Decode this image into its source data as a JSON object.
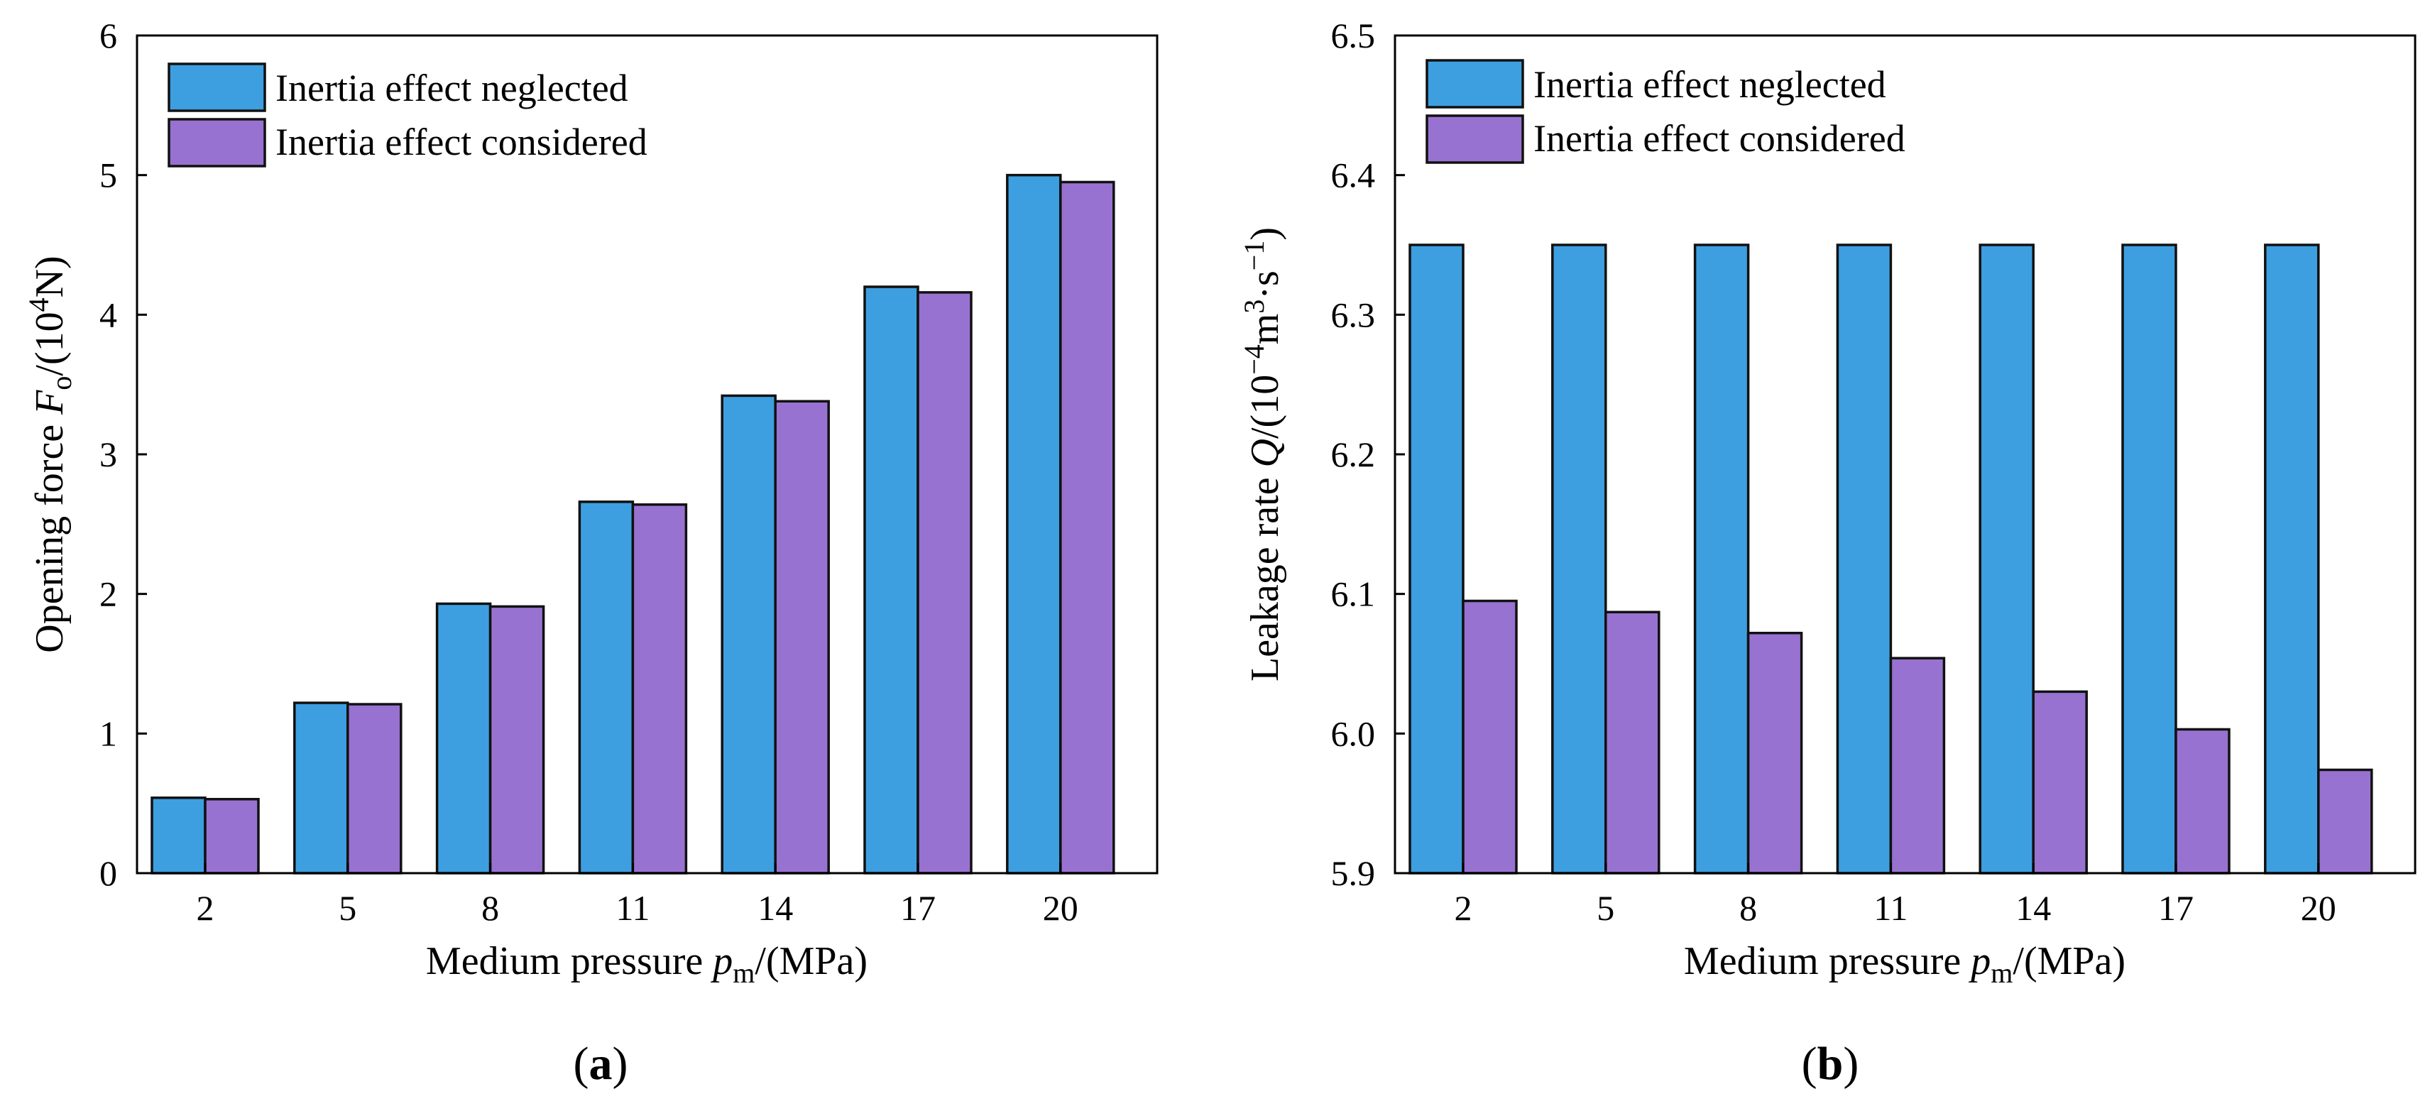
{
  "colors": {
    "neglected_fill": "#3d9fe0",
    "considered_fill": "#9872d0",
    "axis": "#000000"
  },
  "chart_data": [
    {
      "type": "bar",
      "panel_label": "a",
      "categories": [
        "2",
        "5",
        "8",
        "11",
        "14",
        "17",
        "20"
      ],
      "series": [
        {
          "name": "Inertia effect neglected",
          "values": [
            0.54,
            1.22,
            1.93,
            2.66,
            3.42,
            4.2,
            5.0
          ]
        },
        {
          "name": "Inertia effect considered",
          "values": [
            0.53,
            1.21,
            1.91,
            2.64,
            3.38,
            4.16,
            4.95
          ]
        }
      ],
      "ylim": [
        0,
        6
      ],
      "yticks": [
        "0",
        "1",
        "2",
        "3",
        "4",
        "5",
        "6"
      ],
      "xlabel": {
        "main": "Medium pressure ",
        "var": "p",
        "sub": "m",
        "unit": "/(MPa)"
      },
      "ylabel": {
        "main": "Opening force ",
        "var": "F",
        "sub": "o",
        "unit1": "/(10",
        "sup": "4",
        "unit2": "N)"
      },
      "legend_position": "top-left"
    },
    {
      "type": "bar",
      "panel_label": "b",
      "categories": [
        "2",
        "5",
        "8",
        "11",
        "14",
        "17",
        "20"
      ],
      "series": [
        {
          "name": "Inertia effect neglected",
          "values": [
            6.35,
            6.35,
            6.35,
            6.35,
            6.35,
            6.35,
            6.35
          ]
        },
        {
          "name": "Inertia effect considered",
          "values": [
            6.095,
            6.087,
            6.072,
            6.054,
            6.03,
            6.003,
            5.974
          ]
        }
      ],
      "ylim": [
        5.9,
        6.5
      ],
      "yticks": [
        "5.9",
        "6.0",
        "6.1",
        "6.2",
        "6.3",
        "6.4",
        "6.5"
      ],
      "xlabel": {
        "main": "Medium pressure ",
        "var": "p",
        "sub": "m",
        "unit": "/(MPa)"
      },
      "ylabel": {
        "main": "Leakage rate ",
        "var": "Q",
        "unit1": "/(10",
        "sup1": "−4",
        "unit2": "m",
        "sup2": "3",
        "unit3": "·s",
        "sup3": "−1",
        "unit4": ")"
      },
      "legend_position": "top-left"
    }
  ]
}
